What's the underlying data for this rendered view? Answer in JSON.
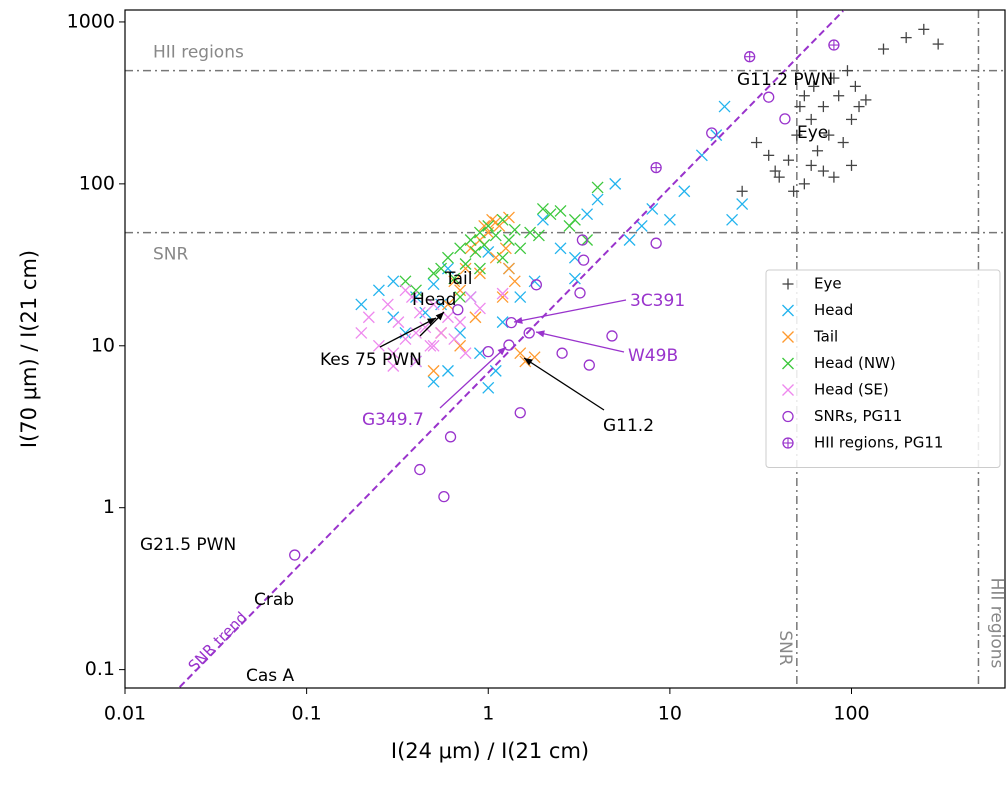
{
  "chart_data": {
    "type": "scatter",
    "x_label": "I(24 μm) / I(21 cm)",
    "y_label": "I(70 μm) / I(21 cm)",
    "x_scale": "log",
    "y_scale": "log",
    "xlim": [
      0.01,
      700
    ],
    "ylim": [
      0.077,
      1185
    ],
    "xticks": [
      0.01,
      0.1,
      1,
      10,
      100
    ],
    "yticks": [
      0.1,
      1,
      10,
      100,
      1000
    ],
    "legend": "center right",
    "series": [
      {
        "name": "Eye",
        "color": "#444444",
        "marker": "+",
        "x": [
          25,
          30,
          35,
          38,
          40,
          45,
          48,
          50,
          52,
          55,
          55,
          60,
          60,
          62,
          65,
          70,
          70,
          75,
          80,
          80,
          85,
          90,
          95,
          100,
          100,
          105,
          110,
          120,
          150,
          200,
          250,
          300
        ],
        "values": [
          90,
          180,
          150,
          120,
          110,
          140,
          90,
          200,
          300,
          350,
          100,
          250,
          130,
          400,
          160,
          300,
          120,
          200,
          450,
          110,
          350,
          180,
          500,
          250,
          130,
          400,
          300,
          330,
          680,
          800,
          900,
          730
        ]
      },
      {
        "name": "Head",
        "color": "#22b3ee",
        "marker": "x",
        "x": [
          0.2,
          0.25,
          0.3,
          0.3,
          0.35,
          0.4,
          0.4,
          0.45,
          0.5,
          0.5,
          0.55,
          0.6,
          0.7,
          0.8,
          0.9,
          1.0,
          1.1,
          1.2,
          1.3,
          1.5,
          1.8,
          2.0,
          2.5,
          3,
          3.5,
          4,
          5,
          6,
          7,
          8,
          10,
          12,
          15,
          18,
          20,
          22,
          25,
          1.0,
          0.6,
          3
        ],
        "values": [
          18,
          22,
          15,
          25,
          12,
          20,
          8,
          16,
          24,
          6,
          18,
          30,
          12,
          20,
          9,
          5.5,
          7,
          14,
          30,
          20,
          25,
          60,
          40,
          35,
          65,
          80,
          100,
          45,
          55,
          70,
          60,
          90,
          150,
          200,
          300,
          60,
          75,
          38,
          7,
          26
        ]
      },
      {
        "name": "Tail",
        "color": "#ff9a2e",
        "marker": "x",
        "x": [
          0.5,
          0.55,
          0.6,
          0.65,
          0.7,
          0.75,
          0.8,
          0.85,
          0.9,
          0.95,
          1.0,
          1.05,
          1.1,
          1.15,
          1.2,
          1.25,
          1.3,
          1.4,
          1.5,
          1.6,
          1.8,
          0.7,
          0.9,
          1.1,
          1.3
        ],
        "values": [
          7,
          12,
          18,
          25,
          10,
          30,
          40,
          15,
          45,
          55,
          50,
          60,
          35,
          55,
          20,
          40,
          30,
          25,
          9,
          8,
          8.5,
          22,
          28,
          58,
          62
        ]
      },
      {
        "name": "Head (NW)",
        "color": "#3cc83c",
        "marker": "x",
        "x": [
          0.35,
          0.4,
          0.5,
          0.55,
          0.6,
          0.65,
          0.7,
          0.75,
          0.8,
          0.85,
          0.9,
          0.95,
          1.0,
          1.1,
          1.2,
          1.3,
          1.4,
          1.5,
          1.7,
          1.9,
          2.0,
          2.2,
          2.5,
          2.8,
          3.0,
          3.5,
          4.0,
          0.7,
          0.9,
          1.2
        ],
        "values": [
          25,
          22,
          28,
          30,
          35,
          26,
          40,
          32,
          45,
          38,
          50,
          42,
          55,
          48,
          60,
          45,
          52,
          40,
          50,
          48,
          70,
          65,
          68,
          55,
          60,
          45,
          95,
          20,
          30,
          35
        ]
      },
      {
        "name": "Head (SE)",
        "color": "#ee88ee",
        "marker": "x",
        "x": [
          0.2,
          0.22,
          0.25,
          0.28,
          0.3,
          0.32,
          0.35,
          0.38,
          0.4,
          0.42,
          0.45,
          0.48,
          0.5,
          0.55,
          0.6,
          0.65,
          0.7,
          0.75,
          0.8,
          0.9,
          0.3,
          0.35,
          0.4,
          0.5,
          1.2
        ],
        "values": [
          12,
          15,
          10,
          18,
          9,
          14,
          11,
          20,
          8,
          16,
          13,
          10,
          18,
          12,
          15,
          11,
          14,
          9,
          20,
          17,
          7.5,
          22,
          12,
          10,
          21
        ]
      },
      {
        "name": "SNRs, PG11",
        "color": "#9933cc",
        "marker": "o",
        "x": [
          0.086,
          0.42,
          0.57,
          0.62,
          1.5,
          1.0,
          1.3,
          1.34,
          1.68,
          2.55,
          3.6,
          4.8,
          1.84,
          3.2,
          3.35,
          3.3,
          8.4,
          17,
          35,
          43,
          0.68
        ],
        "values": [
          0.51,
          1.72,
          1.17,
          2.74,
          3.86,
          9.2,
          10.1,
          13.9,
          12,
          9,
          7.6,
          11.5,
          23.8,
          21.2,
          33.8,
          45,
          43,
          206,
          343,
          252,
          16.7
        ]
      },
      {
        "name": "HII regions, PG11",
        "color": "#9933cc",
        "marker": "circle-plus",
        "x": [
          8.4,
          27.5,
          80
        ],
        "values": [
          126,
          610,
          720
        ]
      }
    ],
    "hlines": [
      {
        "value": 500,
        "label": "HII regions"
      },
      {
        "value": 50,
        "label": "SNR"
      }
    ],
    "vlines": [
      {
        "value": 50,
        "label": "SNR"
      },
      {
        "value": 500,
        "label": "HII regions"
      }
    ],
    "trend": {
      "label": "SNR trend",
      "color": "#9933cc",
      "x": [
        0.02,
        90
      ],
      "values": [
        0.078,
        1170
      ]
    },
    "annotations": [
      {
        "text": "G11.2 PWN",
        "color": "#000000"
      },
      {
        "text": "Eye",
        "color": "#000000"
      },
      {
        "text": "Tail",
        "color": "#000000"
      },
      {
        "text": "Head",
        "color": "#000000"
      },
      {
        "text": "Kes 75 PWN",
        "color": "#000000"
      },
      {
        "text": "3C391",
        "color": "#9933cc"
      },
      {
        "text": "W49B",
        "color": "#9933cc"
      },
      {
        "text": "G349.7",
        "color": "#9933cc"
      },
      {
        "text": "G11.2",
        "color": "#000000"
      },
      {
        "text": "G21.5 PWN",
        "color": "#000000"
      },
      {
        "text": "Crab",
        "color": "#000000"
      },
      {
        "text": "Cas A",
        "color": "#000000"
      }
    ]
  }
}
